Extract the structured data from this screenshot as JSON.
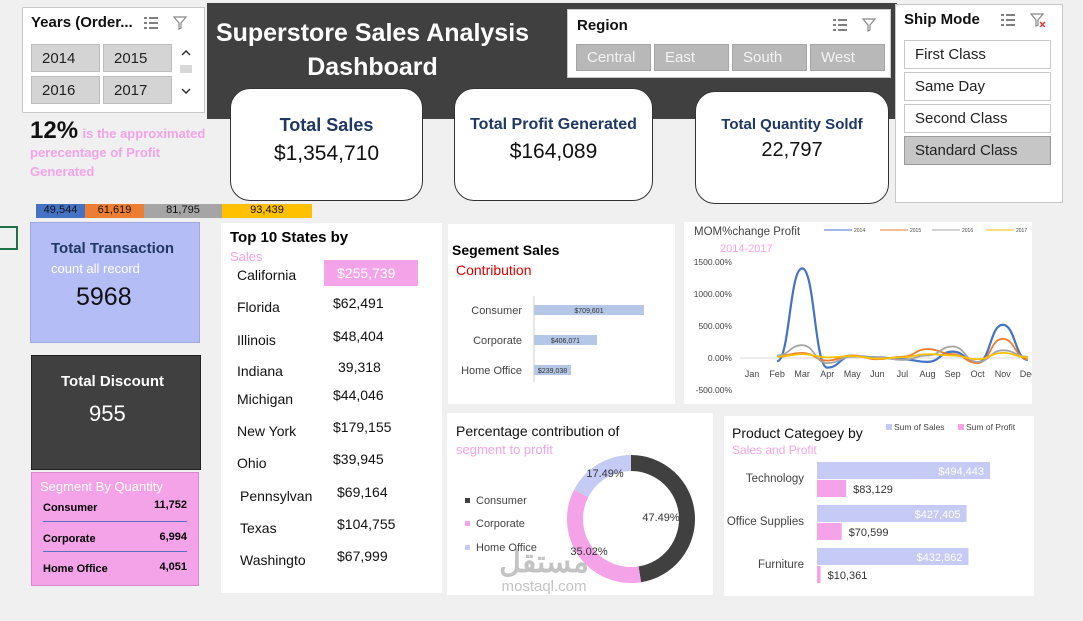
{
  "title": "Superstore Sales Analysis Dashboard",
  "years_slicer": {
    "title": "Years (Order...",
    "items": [
      "2014",
      "2015",
      "2016",
      "2017"
    ]
  },
  "region_slicer": {
    "title": "Region",
    "items": [
      "Central",
      "East",
      "South",
      "West"
    ]
  },
  "ship_mode_slicer": {
    "title": "Ship Mode",
    "items": [
      "First Class",
      "Same Day",
      "Second Class",
      "Standard Class"
    ],
    "selected": "Standard Class"
  },
  "kpis": {
    "total_sales": {
      "label": "Total Sales",
      "value": "$1,354,710"
    },
    "total_profit": {
      "label": "Total Profit Generated",
      "value": "$164,089"
    },
    "total_quantity": {
      "label": "Total Quantity Soldf",
      "value": "22,797"
    }
  },
  "profit_note": {
    "pct": "12%",
    "text_a": "is the approximated",
    "text_b": "perecentage of Profit",
    "text_c": "Generated"
  },
  "year_strip": {
    "values": [
      "49,544",
      "61,619",
      "81,795",
      "93,439"
    ],
    "colors": [
      "#4472c4",
      "#ed7d31",
      "#a5a5a5",
      "#ffc000"
    ]
  },
  "total_transaction": {
    "title": "Total Transaction",
    "subtitle": "count all record",
    "value": "5968"
  },
  "total_discount": {
    "title": "Total Discount",
    "value": "955"
  },
  "segment_quantity": {
    "title": "Segment  By Quantity",
    "rows": [
      {
        "name": "Consumer",
        "value": "11,752"
      },
      {
        "name": "Corporate",
        "value": "6,994"
      },
      {
        "name": "Home Office",
        "value": "4,051"
      }
    ]
  },
  "top_states": {
    "title": "Top 10 States by",
    "subtitle": "Sales",
    "rows": [
      {
        "name": "California",
        "value": "$255,739"
      },
      {
        "name": "Florida",
        "value": "$62,491"
      },
      {
        "name": "Illinois",
        "value": "$48,404"
      },
      {
        "name": "Indiana",
        "value": "39,318"
      },
      {
        "name": "Michigan",
        "value": "$44,046"
      },
      {
        "name": "New York",
        "value": "$179,155"
      },
      {
        "name": "Ohio",
        "value": "$39,945"
      },
      {
        "name": "Pennsylvan",
        "value": "$69,164"
      },
      {
        "name": "Texas",
        "value": "$104,755"
      },
      {
        "name": "Washingto",
        "value": "$67,999"
      }
    ]
  },
  "segment_sales": {
    "title": "Segement Sales",
    "subtitle": "Contribution"
  },
  "mom_chart": {
    "title": "MOM%change Profit",
    "subtitle": "2014-2017"
  },
  "pct_contribution": {
    "title": "Percentage contribution of",
    "subtitle": "segment to profit"
  },
  "product_category": {
    "title": "Product Categoey by",
    "subtitle": "Sales and Profit"
  },
  "watermark": {
    "text_ar": "مستقل",
    "text_en": "mostaql.com"
  },
  "chart_data": [
    {
      "type": "bar",
      "id": "segment_sales",
      "categories": [
        "Consumer",
        "Corporate",
        "Home Office"
      ],
      "values": [
        709601,
        406071,
        239038
      ],
      "labels": [
        "$709,601",
        "$406,071",
        "$239,038"
      ],
      "color": "#b4c7e7"
    },
    {
      "type": "line",
      "id": "mom_profit",
      "x": [
        "Jan",
        "Feb",
        "Mar",
        "Apr",
        "May",
        "Jun",
        "Jul",
        "Aug",
        "Sep",
        "Oct",
        "Nov",
        "Dec"
      ],
      "y_ticks": [
        "1500.00%",
        "1000.00%",
        "500.00%",
        "0.00%",
        "-500.00%"
      ],
      "ylim": [
        -500,
        1500
      ],
      "series": [
        {
          "name": "2014",
          "color": "#4472c4",
          "values": [
            null,
            -50,
            1400,
            -150,
            30,
            10,
            -20,
            -60,
            100,
            -70,
            520,
            -30
          ]
        },
        {
          "name": "2015",
          "color": "#ed7d31",
          "values": [
            null,
            30,
            80,
            -40,
            40,
            -20,
            20,
            140,
            60,
            -80,
            300,
            -20
          ]
        },
        {
          "name": "2016",
          "color": "#a5a5a5",
          "values": [
            null,
            40,
            200,
            -80,
            20,
            10,
            -30,
            40,
            180,
            -60,
            120,
            20
          ]
        },
        {
          "name": "2017",
          "color": "#ffc000",
          "values": [
            null,
            20,
            60,
            10,
            30,
            -10,
            10,
            60,
            40,
            -20,
            80,
            10
          ]
        }
      ]
    },
    {
      "type": "pie",
      "id": "segment_profit",
      "categories": [
        "Consumer",
        "Corporate",
        "Home Office"
      ],
      "values": [
        47.49,
        35.02,
        17.49
      ],
      "labels": [
        "47.49%",
        "35.02%",
        "17.49%"
      ],
      "colors": [
        "#404040",
        "#f4a3e8",
        "#c5cbf5"
      ]
    },
    {
      "type": "bar",
      "id": "product_category",
      "categories": [
        "Technology",
        "Office Supplies",
        "Furniture"
      ],
      "series": [
        {
          "name": "Sum of Sales",
          "color": "#c5cbf5",
          "values": [
            494443,
            427405,
            432862
          ],
          "labels": [
            "$494,443",
            "$427,405",
            "$432,862"
          ]
        },
        {
          "name": "Sum of Profit",
          "color": "#f4a3e8",
          "values": [
            83129,
            70599,
            10361
          ],
          "labels": [
            "$83,129",
            "$70,599",
            "$10,361"
          ]
        }
      ]
    }
  ]
}
